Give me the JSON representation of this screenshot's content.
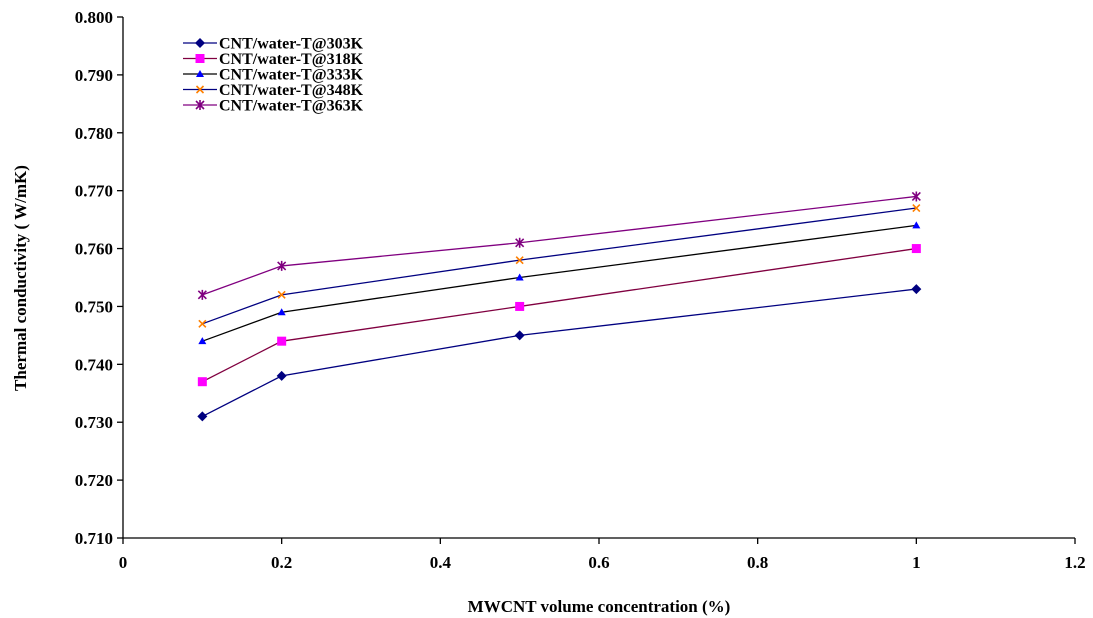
{
  "chart_data": {
    "type": "line",
    "title": "",
    "xlabel": "MWCNT volume concentration (%)",
    "ylabel": "Thermal conductivity ( W/mK)",
    "xlim": [
      0,
      1.2
    ],
    "ylim": [
      0.71,
      0.8
    ],
    "x_ticks": [
      "0",
      "0.2",
      "0.4",
      "0.6",
      "0.8",
      "1",
      "1.2"
    ],
    "y_ticks": [
      "0.710",
      "0.720",
      "0.730",
      "0.740",
      "0.750",
      "0.760",
      "0.770",
      "0.780",
      "0.790",
      "0.800"
    ],
    "grid": false,
    "legend_position": "top-left",
    "x": [
      0.1,
      0.2,
      0.5,
      1.0
    ],
    "series": [
      {
        "name": "CNT/water-T@303K",
        "values": [
          0.731,
          0.738,
          0.745,
          0.753
        ],
        "line_color": "#000080",
        "marker": "diamond",
        "marker_color": "#000080"
      },
      {
        "name": "CNT/water-T@318K",
        "values": [
          0.737,
          0.744,
          0.75,
          0.76
        ],
        "line_color": "#800040",
        "marker": "square",
        "marker_color": "#ff00ff"
      },
      {
        "name": "CNT/water-T@333K",
        "values": [
          0.744,
          0.749,
          0.755,
          0.764
        ],
        "line_color": "#000000",
        "marker": "triangle",
        "marker_color": "#0000ff"
      },
      {
        "name": "CNT/water-T@348K",
        "values": [
          0.747,
          0.752,
          0.758,
          0.767
        ],
        "line_color": "#000080",
        "marker": "x",
        "marker_color": "#ff8000"
      },
      {
        "name": "CNT/water-T@363K",
        "values": [
          0.752,
          0.757,
          0.761,
          0.769
        ],
        "line_color": "#800080",
        "marker": "star",
        "marker_color": "#800080"
      }
    ]
  }
}
